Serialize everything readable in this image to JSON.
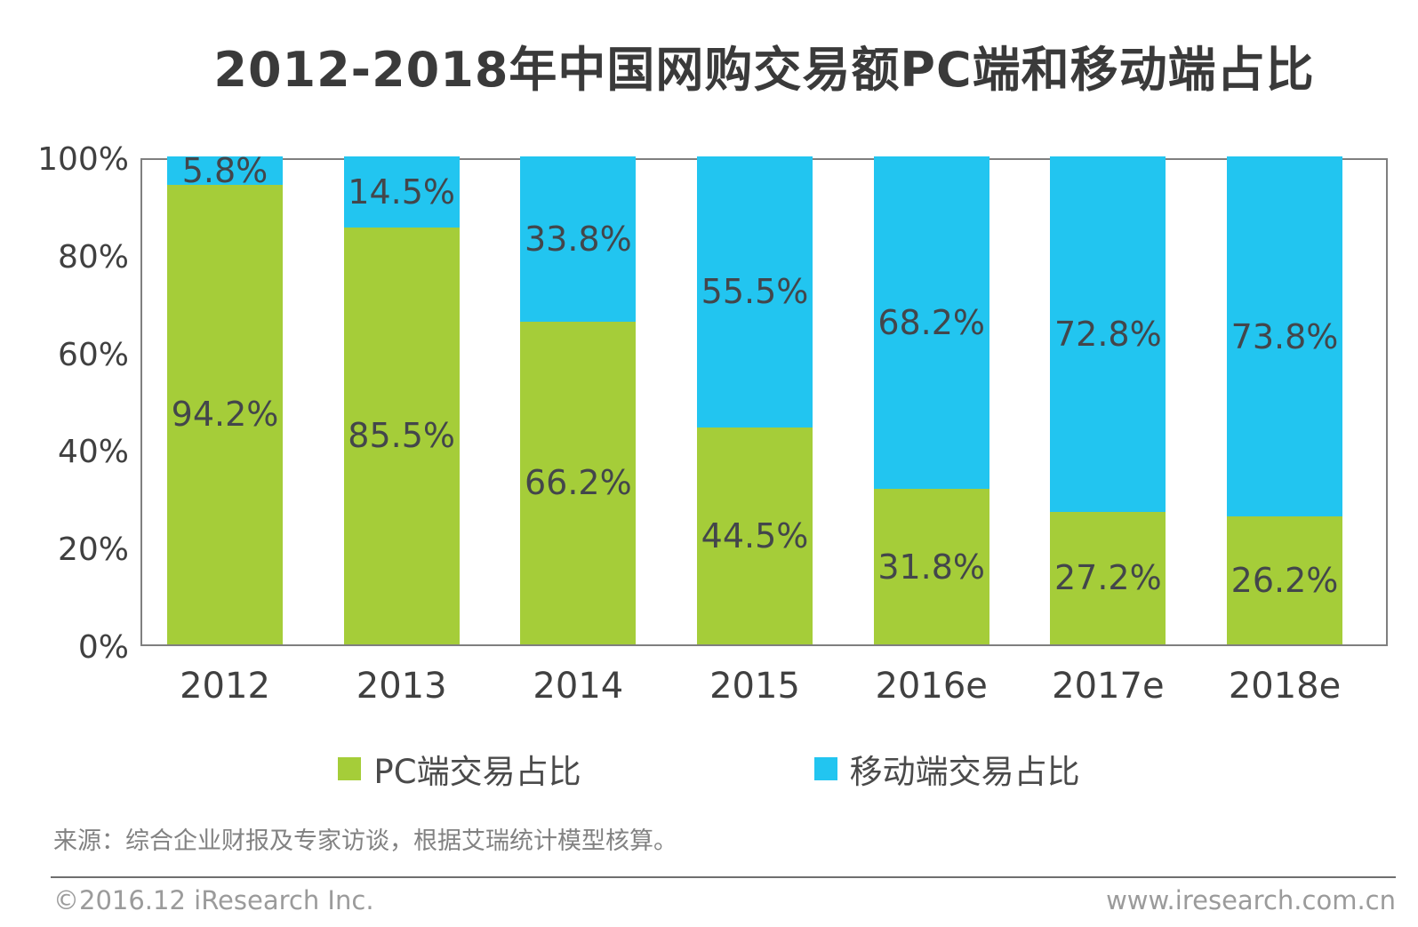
{
  "chart_data": {
    "type": "bar",
    "stacked": true,
    "title": "2012-2018年中国网购交易额PC端和移动端占比",
    "categories": [
      "2012",
      "2013",
      "2014",
      "2015",
      "2016e",
      "2017e",
      "2018e"
    ],
    "series": [
      {
        "name": "PC端交易占比",
        "color": "#a5cd39",
        "values": [
          94.2,
          85.5,
          66.2,
          44.5,
          31.8,
          27.2,
          26.2
        ]
      },
      {
        "name": "移动端交易占比",
        "color": "#22c5f0",
        "values": [
          5.8,
          14.5,
          33.8,
          55.5,
          68.2,
          72.8,
          73.8
        ]
      }
    ],
    "y_ticks": [
      "100%",
      "80%",
      "60%",
      "40%",
      "20%",
      "0%"
    ],
    "ylim": [
      0,
      100
    ],
    "value_suffix": "%",
    "grid": false,
    "legend_position": "bottom",
    "label_color": "#43464b",
    "axis_color": "#404040",
    "plot_border_color": "#7f7f7f"
  },
  "footer": {
    "source_note": "来源：综合企业财报及专家访谈，根据艾瑞统计模型核算。",
    "copyright": "©2016.12 iResearch Inc.",
    "website": "www.iresearch.com.cn"
  }
}
